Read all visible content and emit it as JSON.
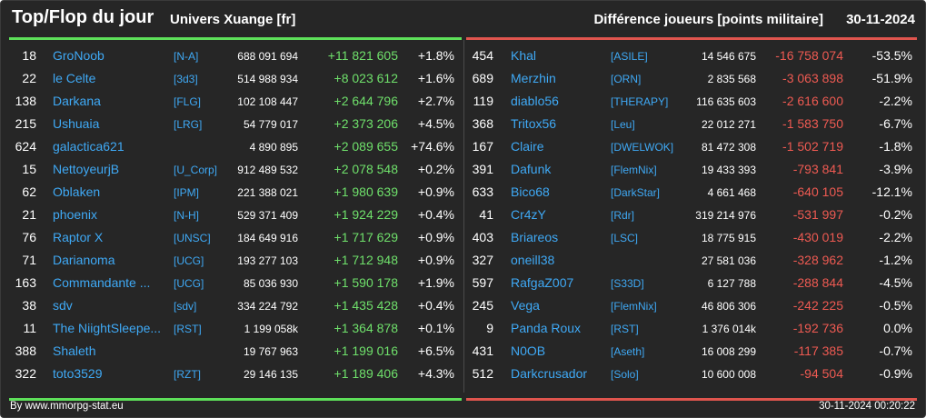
{
  "header": {
    "title": "Top/Flop du jour",
    "universe": "Univers Xuange [fr]",
    "metric": "Différence joueurs [points militaire]",
    "date": "30-11-2024"
  },
  "colors": {
    "top_accent": "#5ee05a",
    "flop_accent": "#e0554e",
    "name_link": "#3fa9f5",
    "background": "#262626"
  },
  "top": [
    {
      "rank": "18",
      "name": "GroNoob",
      "alliance": "[N-A]",
      "points": "688 091 694",
      "diff": "+11 821 605",
      "pct": "+1.8%"
    },
    {
      "rank": "22",
      "name": "le Celte",
      "alliance": "[3d3]",
      "points": "514 988 934",
      "diff": "+8 023 612",
      "pct": "+1.6%"
    },
    {
      "rank": "138",
      "name": "Darkana",
      "alliance": "[FLG]",
      "points": "102 108 447",
      "diff": "+2 644 796",
      "pct": "+2.7%"
    },
    {
      "rank": "215",
      "name": "Ushuaia",
      "alliance": "[LRG]",
      "points": "54 779 017",
      "diff": "+2 373 206",
      "pct": "+4.5%"
    },
    {
      "rank": "624",
      "name": "galactica621",
      "alliance": "",
      "points": "4 890 895",
      "diff": "+2 089 655",
      "pct": "+74.6%"
    },
    {
      "rank": "15",
      "name": "NettoyeurjB",
      "alliance": "[U_Corp]",
      "points": "912 489 532",
      "diff": "+2 078 548",
      "pct": "+0.2%"
    },
    {
      "rank": "62",
      "name": "Oblaken",
      "alliance": "[IPM]",
      "points": "221 388 021",
      "diff": "+1 980 639",
      "pct": "+0.9%"
    },
    {
      "rank": "21",
      "name": "phoenix",
      "alliance": "[N-H]",
      "points": "529 371 409",
      "diff": "+1 924 229",
      "pct": "+0.4%"
    },
    {
      "rank": "76",
      "name": "Raptor X",
      "alliance": "[UNSC]",
      "points": "184 649 916",
      "diff": "+1 717 629",
      "pct": "+0.9%"
    },
    {
      "rank": "71",
      "name": "Darianoma",
      "alliance": "[UCG]",
      "points": "193 277 103",
      "diff": "+1 712 948",
      "pct": "+0.9%"
    },
    {
      "rank": "163",
      "name": "Commandante ...",
      "alliance": "[UCG]",
      "points": "85 036 930",
      "diff": "+1 590 178",
      "pct": "+1.9%"
    },
    {
      "rank": "38",
      "name": "sdv",
      "alliance": "[sdv]",
      "points": "334 224 792",
      "diff": "+1 435 428",
      "pct": "+0.4%"
    },
    {
      "rank": "11",
      "name": "The NiightSleepe...",
      "alliance": "[RST]",
      "points": "1 199 058k",
      "diff": "+1 364 878",
      "pct": "+0.1%"
    },
    {
      "rank": "388",
      "name": "Shaleth",
      "alliance": "",
      "points": "19 767 963",
      "diff": "+1 199 016",
      "pct": "+6.5%"
    },
    {
      "rank": "322",
      "name": "toto3529",
      "alliance": "[RZT]",
      "points": "29 146 135",
      "diff": "+1 189 406",
      "pct": "+4.3%"
    }
  ],
  "flop": [
    {
      "rank": "454",
      "name": "Khal",
      "alliance": "[ASILE]",
      "points": "14 546 675",
      "diff": "-16 758 074",
      "pct": "-53.5%"
    },
    {
      "rank": "689",
      "name": "Merzhin",
      "alliance": "[ORN]",
      "points": "2 835 568",
      "diff": "-3 063 898",
      "pct": "-51.9%"
    },
    {
      "rank": "119",
      "name": "diablo56",
      "alliance": "[THERAPY]",
      "points": "116 635 603",
      "diff": "-2 616 600",
      "pct": "-2.2%"
    },
    {
      "rank": "368",
      "name": "Tritox56",
      "alliance": "[Leu]",
      "points": "22 012 271",
      "diff": "-1 583 750",
      "pct": "-6.7%"
    },
    {
      "rank": "167",
      "name": "Claire",
      "alliance": "[DWELWOK]",
      "points": "81 472 308",
      "diff": "-1 502 719",
      "pct": "-1.8%"
    },
    {
      "rank": "391",
      "name": "Dafunk",
      "alliance": "[FlemNix]",
      "points": "19 433 393",
      "diff": "-793 841",
      "pct": "-3.9%"
    },
    {
      "rank": "633",
      "name": "Bico68",
      "alliance": "[DarkStar]",
      "points": "4 661 468",
      "diff": "-640 105",
      "pct": "-12.1%"
    },
    {
      "rank": "41",
      "name": "Cr4zY",
      "alliance": "[Rdr]",
      "points": "319 214 976",
      "diff": "-531 997",
      "pct": "-0.2%"
    },
    {
      "rank": "403",
      "name": "Briareos",
      "alliance": "[LSC]",
      "points": "18 775 915",
      "diff": "-430 019",
      "pct": "-2.2%"
    },
    {
      "rank": "327",
      "name": "oneill38",
      "alliance": "",
      "points": "27 581 036",
      "diff": "-328 962",
      "pct": "-1.2%"
    },
    {
      "rank": "597",
      "name": "RafgaZ007",
      "alliance": "[S33D]",
      "points": "6 127 788",
      "diff": "-288 844",
      "pct": "-4.5%"
    },
    {
      "rank": "245",
      "name": "Vega",
      "alliance": "[FlemNix]",
      "points": "46 806 306",
      "diff": "-242 225",
      "pct": "-0.5%"
    },
    {
      "rank": "9",
      "name": "Panda Roux",
      "alliance": "[RST]",
      "points": "1 376 014k",
      "diff": "-192 736",
      "pct": "0.0%"
    },
    {
      "rank": "431",
      "name": "N0OB",
      "alliance": "[Aseth]",
      "points": "16 008 299",
      "diff": "-117 385",
      "pct": "-0.7%"
    },
    {
      "rank": "512",
      "name": "Darkcrusador",
      "alliance": "[Solo]",
      "points": "10 600 008",
      "diff": "-94 504",
      "pct": "-0.9%"
    }
  ],
  "footer": {
    "credit": "By www.mmorpg-stat.eu",
    "timestamp": "30-11-2024 00:20:22"
  }
}
